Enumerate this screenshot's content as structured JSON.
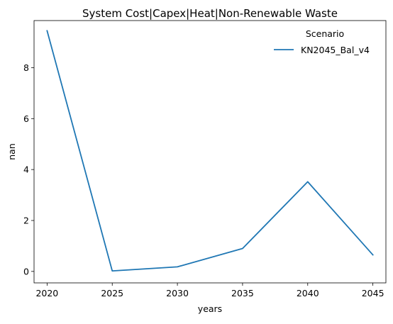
{
  "chart_data": {
    "type": "line",
    "title": "System Cost|Capex|Heat|Non-Renewable Waste",
    "xlabel": "years",
    "ylabel": "nan",
    "x": [
      2020,
      2025,
      2030,
      2035,
      2040,
      2045
    ],
    "xlim": [
      2019.0,
      2046.0
    ],
    "ylim": [
      -0.45,
      9.85
    ],
    "xticks": [
      2020,
      2025,
      2030,
      2035,
      2040,
      2045
    ],
    "yticks": [
      0,
      2,
      4,
      6,
      8
    ],
    "grid": false,
    "legend": {
      "title": "Scenario",
      "placement": "top-right"
    },
    "series": [
      {
        "name": "KN2045_Bal_v4",
        "color": "#1f77b4",
        "values": [
          9.45,
          0.02,
          0.18,
          0.9,
          3.52,
          0.65
        ]
      }
    ]
  }
}
